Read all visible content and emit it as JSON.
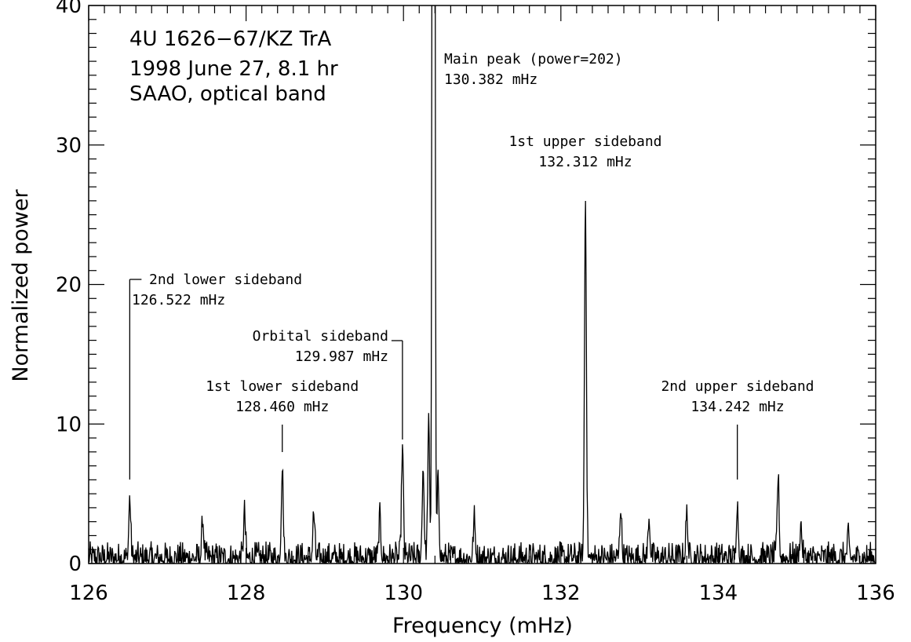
{
  "chart_data": {
    "type": "line",
    "title_lines": [
      "4U 1626−67/KZ TrA",
      "1998 June 27, 8.1 hr",
      "SAAO, optical band"
    ],
    "xlabel": "Frequency (mHz)",
    "ylabel": "Normalized power",
    "xlim": [
      126,
      136
    ],
    "ylim": [
      0,
      40
    ],
    "xticks": [
      126,
      128,
      130,
      132,
      134,
      136
    ],
    "xtick_labels": [
      "126",
      "128",
      "130",
      "132",
      "134",
      "136"
    ],
    "yticks": [
      0,
      10,
      20,
      30,
      40
    ],
    "ytick_labels": [
      "0",
      "10",
      "20",
      "30",
      "40"
    ],
    "grid": false,
    "legend": "none",
    "peaks": [
      {
        "x": 126.522,
        "y": 4.3
      },
      {
        "x": 127.45,
        "y": 2.7
      },
      {
        "x": 127.98,
        "y": 3.2
      },
      {
        "x": 128.46,
        "y": 6.5
      },
      {
        "x": 128.86,
        "y": 3.2
      },
      {
        "x": 129.7,
        "y": 2.8
      },
      {
        "x": 129.987,
        "y": 7.9
      },
      {
        "x": 130.25,
        "y": 6.5
      },
      {
        "x": 130.32,
        "y": 9.4
      },
      {
        "x": 130.382,
        "y": 202
      },
      {
        "x": 130.44,
        "y": 5.5
      },
      {
        "x": 130.9,
        "y": 2.8
      },
      {
        "x": 132.312,
        "y": 25.8
      },
      {
        "x": 132.76,
        "y": 3.6
      },
      {
        "x": 133.12,
        "y": 2.9
      },
      {
        "x": 133.6,
        "y": 3.2
      },
      {
        "x": 134.242,
        "y": 3.8
      },
      {
        "x": 134.76,
        "y": 5.8
      },
      {
        "x": 135.05,
        "y": 2.4
      },
      {
        "x": 135.65,
        "y": 1.4
      }
    ],
    "annotations": [
      {
        "id": "main",
        "lines": [
          "Main peak (power=202)",
          "130.382 mHz"
        ],
        "x": 130.382
      },
      {
        "id": "upper1",
        "lines": [
          "1st upper sideband",
          "132.312 mHz"
        ],
        "x": 132.312
      },
      {
        "id": "lower2",
        "lines": [
          "2nd lower sideband",
          "126.522 mHz"
        ],
        "x": 126.522
      },
      {
        "id": "orbital",
        "lines": [
          "Orbital sideband",
          "129.987 mHz"
        ],
        "x": 129.987
      },
      {
        "id": "lower1",
        "lines": [
          "1st lower sideband",
          "128.460 mHz"
        ],
        "x": 128.46
      },
      {
        "id": "upper2",
        "lines": [
          "2nd upper sideband",
          "134.242 mHz"
        ],
        "x": 134.242
      }
    ]
  }
}
